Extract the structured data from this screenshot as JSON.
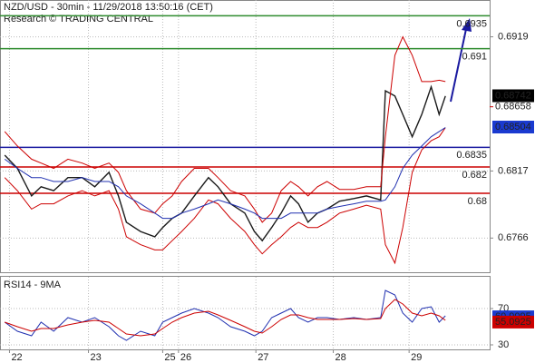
{
  "chart_data": [
    {
      "type": "line",
      "title": "NZD/USD - 30min - 11/29/2018 13:50:16 (CET)",
      "subtitle": "Research © TRADING CENTRAL",
      "x": [
        3,
        11,
        20,
        26,
        34,
        43,
        52,
        60,
        69,
        75,
        80,
        89,
        98,
        103,
        109,
        115,
        123,
        132,
        138,
        146,
        155,
        161,
        166,
        172,
        178,
        184,
        189,
        195,
        201,
        207,
        215,
        224,
        232,
        241,
        244,
        250,
        255,
        261,
        267,
        273,
        278,
        282
      ],
      "xlim": [
        0,
        310
      ],
      "ylim": [
        0.674,
        0.6947
      ],
      "yticks": [
        0.6919,
        0.6817,
        0.6766
      ],
      "grid": true,
      "series": [
        {
          "name": "Price",
          "color": "#1a1a1a",
          "values": [
            0.6829,
            0.6819,
            0.6798,
            0.6805,
            0.6802,
            0.6812,
            0.6812,
            0.6805,
            0.6816,
            0.6798,
            0.6778,
            0.6771,
            0.6767,
            0.6774,
            0.6781,
            0.6785,
            0.6798,
            0.6812,
            0.6805,
            0.6792,
            0.6785,
            0.6771,
            0.6764,
            0.6774,
            0.6785,
            0.6798,
            0.6792,
            0.6778,
            0.6785,
            0.6788,
            0.6794,
            0.6796,
            0.6798,
            0.6795,
            0.6878,
            0.6874,
            0.686,
            0.6843,
            0.686,
            0.6881,
            0.686,
            0.6874
          ]
        },
        {
          "name": "Upper band",
          "color": "#cc0000",
          "values": [
            0.6847,
            0.6836,
            0.6826,
            0.6823,
            0.6819,
            0.6826,
            0.6823,
            0.6819,
            0.6823,
            0.6816,
            0.6802,
            0.6788,
            0.6785,
            0.6792,
            0.6798,
            0.6809,
            0.6819,
            0.6819,
            0.6812,
            0.6802,
            0.6798,
            0.6788,
            0.6778,
            0.6785,
            0.6802,
            0.6809,
            0.6805,
            0.6798,
            0.6805,
            0.6809,
            0.6803,
            0.6803,
            0.6805,
            0.6805,
            0.6843,
            0.6905,
            0.6919,
            0.6905,
            0.6885,
            0.6885,
            0.6886,
            0.6885
          ]
        },
        {
          "name": "Lower band",
          "color": "#cc0000",
          "values": [
            0.6812,
            0.6802,
            0.6788,
            0.6792,
            0.6792,
            0.6798,
            0.6802,
            0.6798,
            0.6802,
            0.6788,
            0.6767,
            0.6761,
            0.6757,
            0.6757,
            0.6764,
            0.6771,
            0.6781,
            0.6795,
            0.6792,
            0.6781,
            0.6771,
            0.6761,
            0.6754,
            0.6761,
            0.6767,
            0.6774,
            0.6778,
            0.6774,
            0.6774,
            0.6778,
            0.6785,
            0.6788,
            0.6791,
            0.6788,
            0.6761,
            0.6747,
            0.6774,
            0.6816,
            0.6833,
            0.684,
            0.6843,
            0.685
          ]
        },
        {
          "name": "Moving average",
          "color": "#2030b0",
          "values": [
            0.6826,
            0.6819,
            0.6812,
            0.6812,
            0.6809,
            0.6809,
            0.6812,
            0.6809,
            0.6809,
            0.6805,
            0.6798,
            0.6792,
            0.6785,
            0.6781,
            0.6781,
            0.6785,
            0.6788,
            0.6792,
            0.6795,
            0.6792,
            0.6788,
            0.6785,
            0.6781,
            0.6781,
            0.6781,
            0.6785,
            0.6785,
            0.6785,
            0.6785,
            0.6788,
            0.679,
            0.6792,
            0.6794,
            0.6794,
            0.6795,
            0.6805,
            0.6819,
            0.6829,
            0.6836,
            0.6843,
            0.6847,
            0.685
          ]
        }
      ],
      "levels": [
        {
          "value": 0.6935,
          "color": "#2e8b2e"
        },
        {
          "value": 0.691,
          "color": "#2e8b2e"
        },
        {
          "value": 0.6835,
          "color": "#1a1aa0"
        },
        {
          "value": 0.682,
          "color": "#cc0000"
        },
        {
          "value": 0.68,
          "color": "#cc0000"
        }
      ],
      "price_labels": [
        {
          "value": 0.68742,
          "color": "#000000",
          "box": true
        },
        {
          "value": 0.68658,
          "color": "#cc0000",
          "box": false
        },
        {
          "value": 0.68504,
          "color": "#1a3ad0",
          "box": true
        }
      ]
    },
    {
      "type": "line",
      "title": "RSI14 - 9MA",
      "x": [
        3,
        11,
        20,
        26,
        34,
        43,
        52,
        60,
        69,
        75,
        80,
        89,
        98,
        103,
        109,
        115,
        123,
        132,
        138,
        146,
        155,
        161,
        166,
        172,
        178,
        184,
        189,
        195,
        201,
        207,
        215,
        224,
        232,
        241,
        244,
        250,
        255,
        261,
        267,
        273,
        278,
        282
      ],
      "xlim": [
        0,
        310
      ],
      "xticks": [
        {
          "value": 6,
          "label": "22"
        },
        {
          "value": 56,
          "label": "23"
        },
        {
          "value": 103,
          "label": "25"
        },
        {
          "value": 113,
          "label": "26"
        },
        {
          "value": 162,
          "label": "27"
        },
        {
          "value": 211,
          "label": "28"
        },
        {
          "value": 259,
          "label": "29"
        }
      ],
      "ylim": [
        25,
        105
      ],
      "yticks": [
        70,
        30
      ],
      "grid": true,
      "series": [
        {
          "name": "RSI14",
          "color": "#2030b0",
          "values": [
            55,
            45,
            40,
            55,
            45,
            60,
            55,
            60,
            50,
            40,
            35,
            45,
            40,
            55,
            60,
            65,
            70,
            65,
            60,
            50,
            45,
            40,
            45,
            60,
            65,
            70,
            60,
            55,
            60,
            60,
            58,
            60,
            58,
            60,
            90,
            85,
            65,
            55,
            70,
            72,
            55,
            62
          ]
        },
        {
          "name": "9MA",
          "color": "#cc0000",
          "values": [
            55,
            50,
            45,
            48,
            48,
            52,
            55,
            57,
            55,
            48,
            42,
            40,
            42,
            48,
            55,
            60,
            65,
            67,
            63,
            57,
            50,
            45,
            43,
            50,
            58,
            63,
            63,
            60,
            58,
            58,
            58,
            59,
            58,
            59,
            70,
            80,
            75,
            65,
            62,
            65,
            62,
            57
          ]
        }
      ],
      "price_labels": [
        {
          "value": 60.9095,
          "color": "#1a3ad0",
          "box": true
        },
        {
          "value": 55.0925,
          "color": "#cc0000",
          "box": true
        }
      ]
    }
  ]
}
